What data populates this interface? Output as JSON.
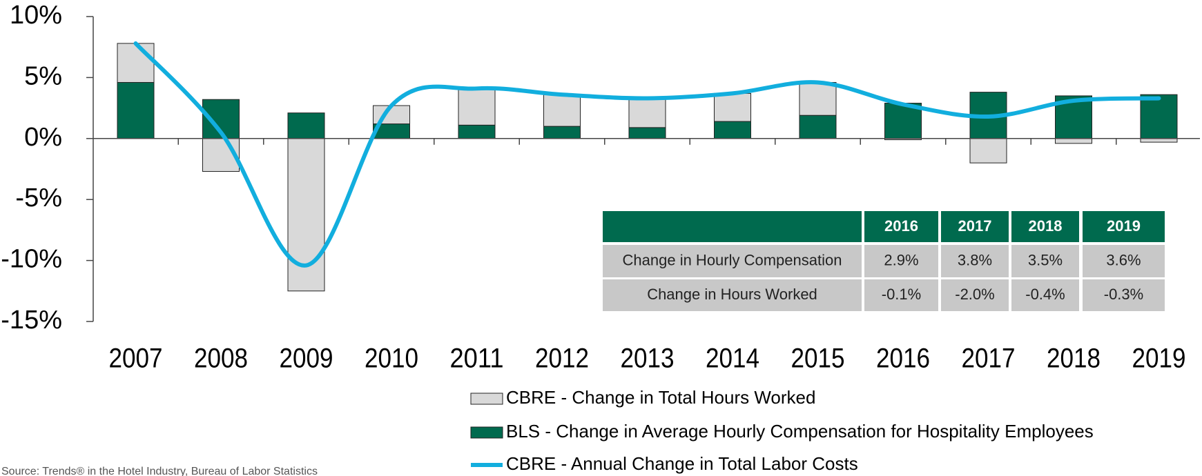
{
  "chart_data": {
    "type": "bar_line",
    "categories": [
      "2007",
      "2008",
      "2009",
      "2010",
      "2011",
      "2012",
      "2013",
      "2014",
      "2015",
      "2016",
      "2017",
      "2018",
      "2019"
    ],
    "series": [
      {
        "name": "CBRE - Change in Total Hours Worked",
        "type": "bar",
        "color": "#d9d9d9",
        "values": [
          3.2,
          -2.7,
          -12.5,
          1.5,
          3.0,
          2.6,
          2.4,
          2.3,
          2.7,
          -0.1,
          -2.0,
          -0.4,
          -0.3
        ]
      },
      {
        "name": "BLS - Change in Average Hourly Compensation for Hospitality Employees",
        "type": "bar",
        "color": "#006a4e",
        "values": [
          4.6,
          3.2,
          2.1,
          1.2,
          1.1,
          1.0,
          0.9,
          1.4,
          1.9,
          2.9,
          3.8,
          3.5,
          3.6
        ]
      },
      {
        "name": "CBRE - Annual Change in Total Labor Costs",
        "type": "line",
        "color": "#12aede",
        "values": [
          7.8,
          0.5,
          -10.4,
          2.7,
          4.1,
          3.6,
          3.3,
          3.7,
          4.6,
          2.8,
          1.8,
          3.1,
          3.3
        ]
      }
    ],
    "ylim": [
      -15,
      10
    ],
    "yticks": [
      {
        "value": -15,
        "label": "-15%"
      },
      {
        "value": -10,
        "label": "-10%"
      },
      {
        "value": -5,
        "label": "-5%"
      },
      {
        "value": 0,
        "label": "0%"
      },
      {
        "value": 5,
        "label": "5%"
      },
      {
        "value": 10,
        "label": "10%"
      }
    ],
    "table": {
      "columns": [
        "2016",
        "2017",
        "2018",
        "2019"
      ],
      "rows": [
        {
          "label": "Change in Hourly Compensation",
          "cells": [
            "2.9%",
            "3.8%",
            "3.5%",
            "3.6%"
          ]
        },
        {
          "label": "Change in Hours Worked",
          "cells": [
            "-0.1%",
            "-2.0%",
            "-0.4%",
            "-0.3%"
          ]
        }
      ]
    },
    "source": "Source: Trends® in the Hotel Industry, Bureau of Labor Statistics"
  }
}
